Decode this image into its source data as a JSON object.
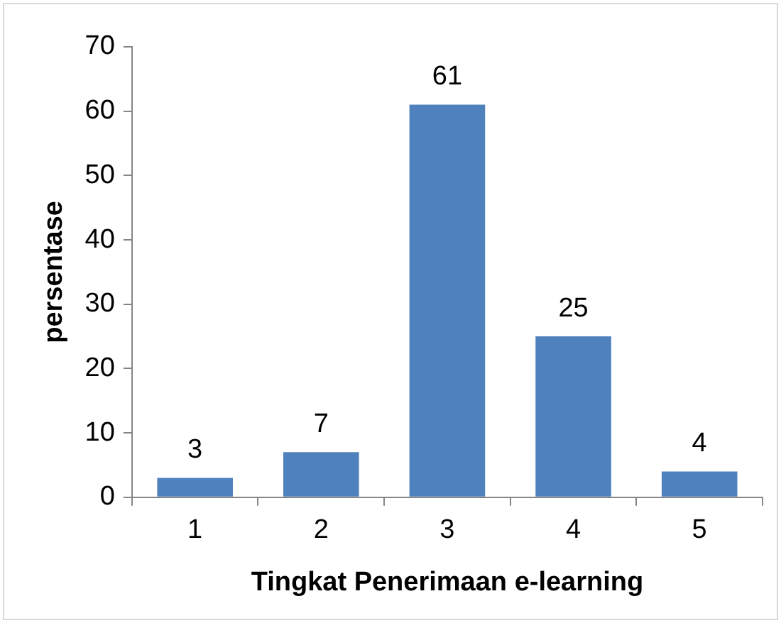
{
  "chart_data": {
    "type": "bar",
    "xlabel": "Tingkat Penerimaan e-learning",
    "ylabel": "persentase",
    "categories": [
      "1",
      "2",
      "3",
      "4",
      "5"
    ],
    "values": [
      3,
      7,
      61,
      25,
      4
    ],
    "color": "#4f81bd",
    "ylim": [
      0,
      70
    ],
    "yticks": [
      0,
      10,
      20,
      30,
      40,
      50,
      60,
      70
    ],
    "grid": false,
    "legend": false,
    "data_labels": true
  }
}
